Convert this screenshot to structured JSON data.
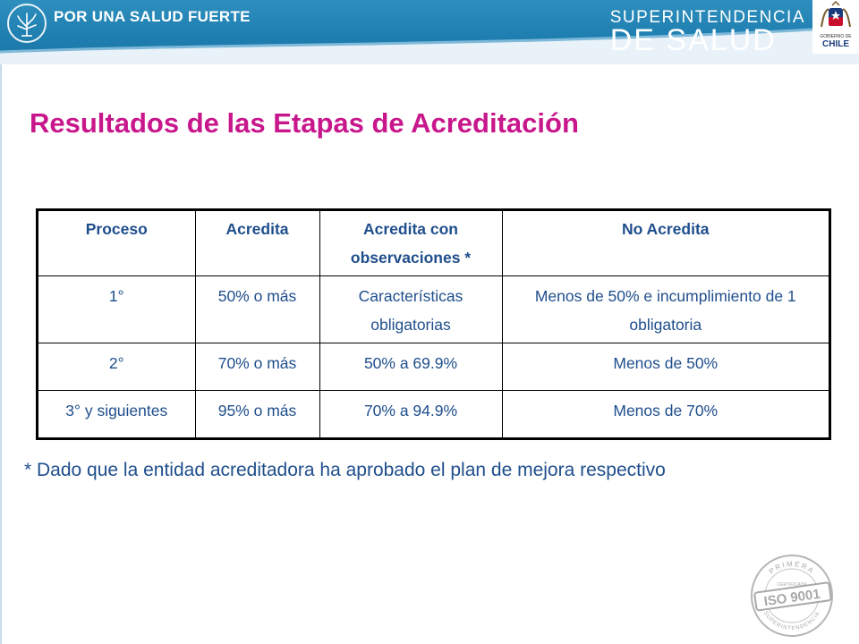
{
  "header": {
    "slogan": "POR UNA SALUD FUERTE",
    "brand_line1": "SUPERINTENDENCIA",
    "brand_line2": "DE SALUD",
    "seal_subtext": "GOBIERNO DE",
    "seal_text": "CHILE",
    "colors": {
      "band": "#1f7fb0",
      "wave": "#e8f2f8"
    }
  },
  "title": "Resultados de las Etapas de Acreditación",
  "table": {
    "headers": [
      "Proceso",
      "Acredita",
      "Acredita con observaciones *",
      "No Acredita"
    ],
    "rows": [
      [
        "1°",
        "50% o más",
        "Características obligatorias",
        "Menos de 50% e incumplimiento de 1 obligatoria"
      ],
      [
        "2°",
        "70% o más",
        "50% a 69.9%",
        "Menos de 50%"
      ],
      [
        "3° y siguientes",
        "95% o más",
        "70% a 94.9%",
        "Menos de 70%"
      ]
    ]
  },
  "footnote": "* Dado que la entidad acreditadora ha aprobado el plan de mejora respectivo",
  "iso_seal": {
    "top_text": "PRIMERA",
    "mid_text": "CERTIFICADA",
    "main_text": "ISO 9001",
    "bottom_text": "SUPERINTENDENCIA"
  },
  "colors": {
    "title": "#c8178c",
    "text": "#1f4e8c"
  }
}
